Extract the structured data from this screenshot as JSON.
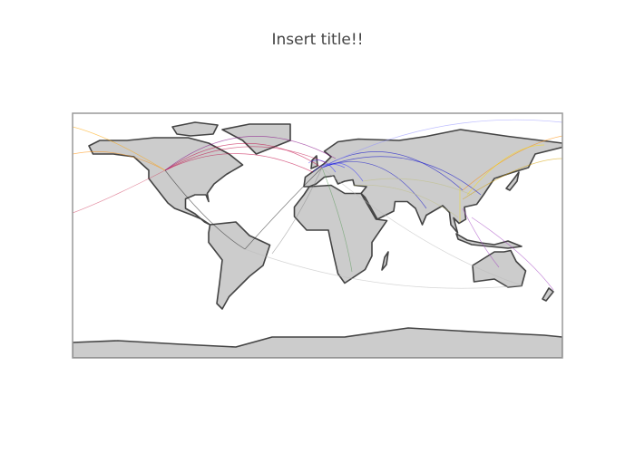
{
  "title": "Insert title!!"
}
